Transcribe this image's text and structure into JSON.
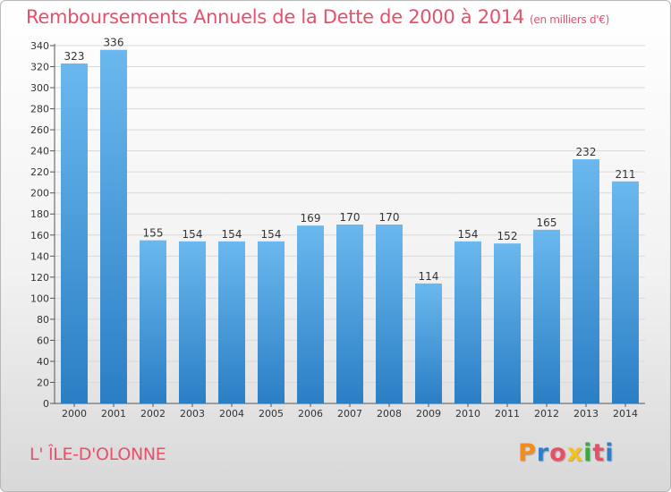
{
  "header": {
    "title": "Remboursements Annuels de la Dette de 2000 à 2014",
    "subtitle": "(en milliers d'€)"
  },
  "footer": {
    "commune": "L' ÎLE-D'OLONNE",
    "brand": "Proxiti",
    "brand_colors": [
      "#f28c1a",
      "#2f7fc8",
      "#e8506a",
      "#f2c21a",
      "#3aa845",
      "#e8506a",
      "#2f7fc8"
    ]
  },
  "colors": {
    "bar_top": "#6ab8ee",
    "bar_bottom": "#2a7fc4",
    "accent": "#e8506a",
    "grid": "#d8d8d8"
  },
  "chart_data": {
    "type": "bar",
    "categories": [
      "2000",
      "2001",
      "2002",
      "2003",
      "2004",
      "2005",
      "2006",
      "2007",
      "2008",
      "2009",
      "2010",
      "2011",
      "2012",
      "2013",
      "2014"
    ],
    "values": [
      323,
      336,
      155,
      154,
      154,
      154,
      169,
      170,
      170,
      114,
      154,
      152,
      165,
      232,
      211
    ],
    "title": "Remboursements Annuels de la Dette de 2000 à 2014",
    "ylim": [
      0,
      340
    ],
    "yticks": [
      0,
      20,
      40,
      60,
      80,
      100,
      120,
      140,
      160,
      180,
      200,
      220,
      240,
      260,
      280,
      300,
      320,
      340
    ],
    "grid": true,
    "data_labels": true
  }
}
